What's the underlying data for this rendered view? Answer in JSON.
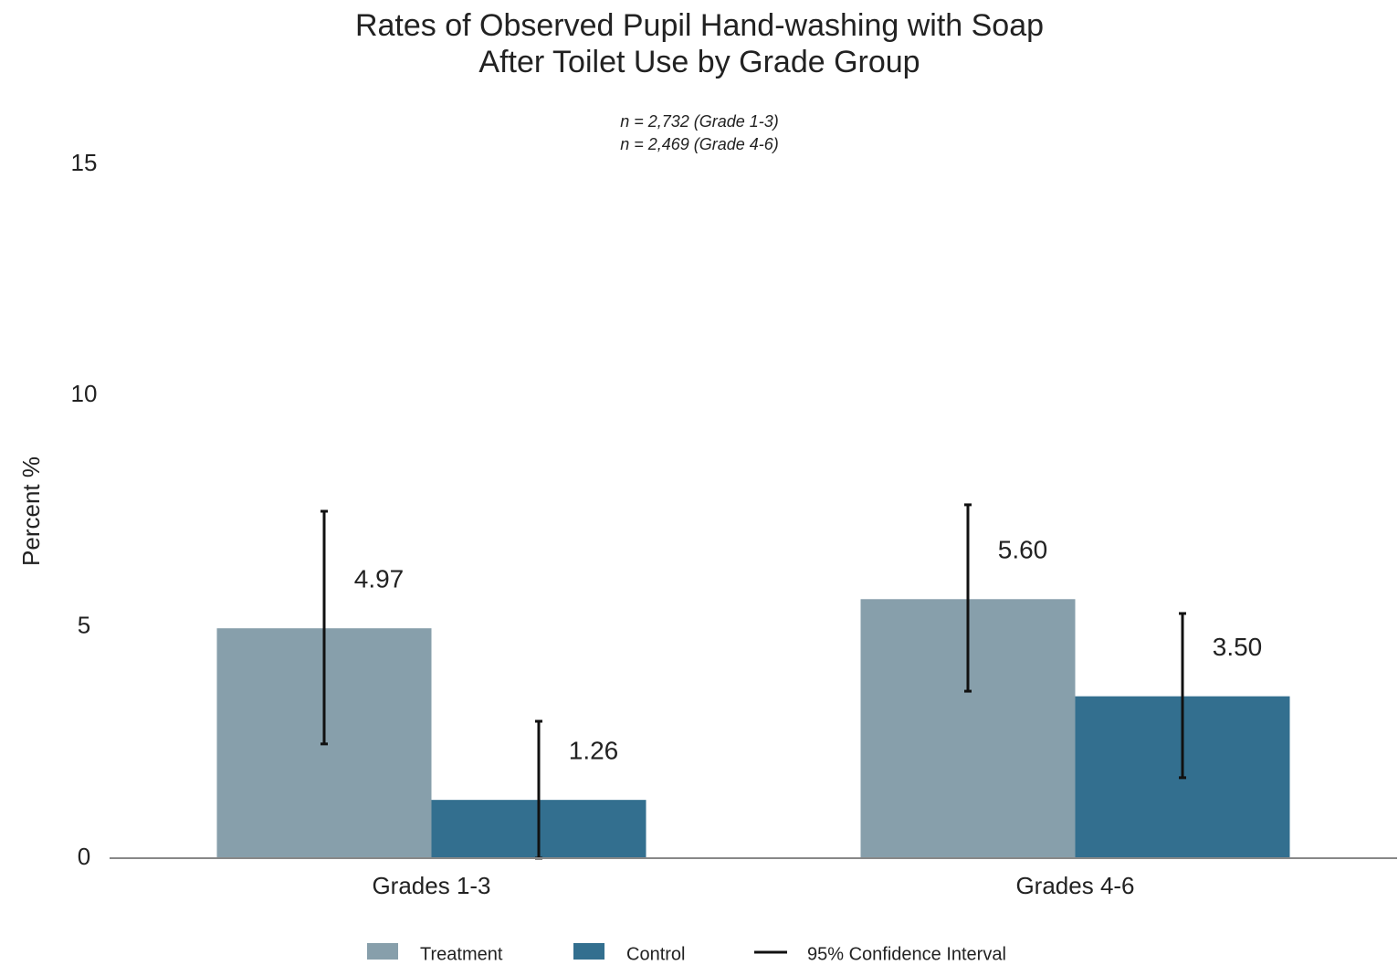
{
  "chart_data": {
    "type": "bar",
    "title": [
      "Rates of Observed Pupil Hand-washing with Soap",
      "After Toilet Use by Grade Group"
    ],
    "subtitle": [
      "n = 2,732 (Grade 1-3)",
      "n = 2,469 (Grade 4-6)"
    ],
    "ylabel": "Percent %",
    "categories": [
      "Grades 1-3",
      "Grades 4-6"
    ],
    "series": [
      {
        "name": "Treatment",
        "color": "#879fab",
        "values": [
          4.97,
          5.6
        ],
        "value_labels": [
          "4.97",
          "5.60"
        ],
        "ci_low": [
          2.47,
          3.61
        ],
        "ci_high": [
          7.5,
          7.64
        ]
      },
      {
        "name": "Control",
        "color": "#336f8f",
        "values": [
          1.26,
          3.5
        ],
        "value_labels": [
          "1.26",
          "3.50"
        ],
        "ci_low": [
          0,
          1.74
        ],
        "ci_high": [
          2.96,
          5.29
        ]
      }
    ],
    "ci_label": "95% Confidence Interval",
    "ylim": [
      0,
      15
    ],
    "yticks": [
      0,
      5,
      10,
      15
    ],
    "grid": false,
    "legend": "bottom"
  }
}
